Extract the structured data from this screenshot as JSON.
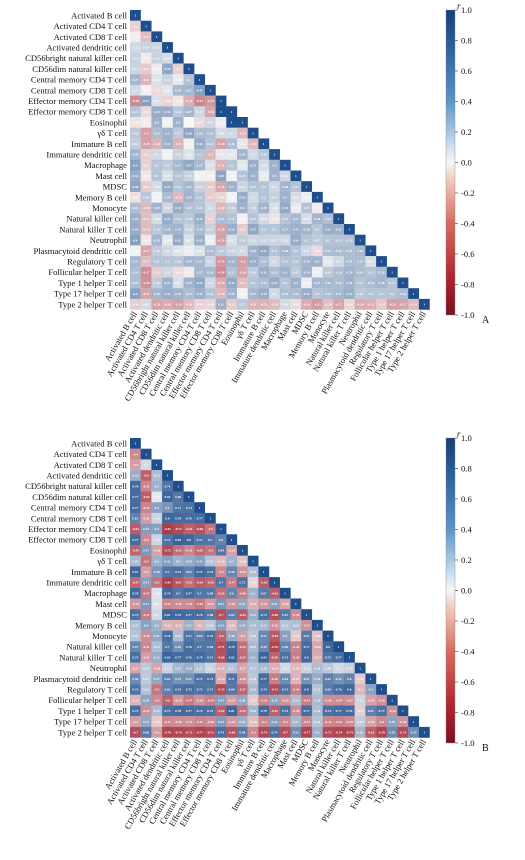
{
  "figure": {
    "colorbar_symbol": "r",
    "colorbar_ticks": [
      "1.0",
      "0.8",
      "0.6",
      "0.4",
      "0.2",
      "0.0",
      "-0.2",
      "-0.4",
      "-0.6",
      "-0.8",
      "-1.0"
    ],
    "colors": {
      "positive": "#1f4e8c",
      "neutral": "#f7f7f7",
      "negative": "#a01c2c"
    }
  },
  "chart_data": [
    {
      "type": "heatmap",
      "panel_label": "A",
      "labels": [
        "Activated B cell",
        "Activated CD4 T cell",
        "Activated CD8 T cell",
        "Activated dendritic cell",
        "CD56bright natural killer cell",
        "CD56dim natural killer cell",
        "Central memory CD4 T cell",
        "Central memory CD8 T cell",
        "Effector memory CD4 T cell",
        "Effector memory CD8 T cell",
        "Eosinophil",
        "γδ T cell",
        "Immature B cell",
        "Immature dendritic cell",
        "Macrophage",
        "Mast cell",
        "MDSC",
        "Memory B cell",
        "Monocyte",
        "Natural killer cell",
        "Natural killer T cell",
        "Neutrophil",
        "Plasmacytoid dendritic cell",
        "Regulatory T cell",
        "Follicular helper T cell",
        "Type 1 helper T cell",
        "Type 17 helper T cell",
        "Type 2 helper T cell"
      ],
      "matrix_shape": "lower-triangular",
      "value_range": [
        -1,
        1
      ],
      "rows": [
        [
          1
        ],
        [
          -0.1,
          1
        ],
        [
          -0.02,
          -0.17,
          1
        ],
        [
          0.1,
          0.13,
          0.12,
          1
        ],
        [
          0.14,
          -0.02,
          0.13,
          0.09,
          1
        ],
        [
          0.12,
          -0.12,
          -0.02,
          0.37,
          -0.1,
          1
        ],
        [
          0.27,
          -0.21,
          0.06,
          0.13,
          0.03,
          0.2,
          1
        ],
        [
          0.1,
          -0.01,
          -0.07,
          0.05,
          0.26,
          0.27,
          0.41,
          1
        ],
        [
          -0.38,
          0.41,
          0.07,
          -0.09,
          -0.03,
          -0.23,
          -0.41,
          -0.33,
          1
        ],
        [
          0.21,
          -0.07,
          0.33,
          0.33,
          0.19,
          0.27,
          0.11,
          -0.26,
          1,
          1
        ],
        [
          -0.04,
          -0.02,
          0.3,
          0.01,
          0.3,
          0,
          -0.07,
          0.11,
          -0.02,
          1,
          1
        ],
        [
          0.18,
          -0.3,
          0.24,
          0.3,
          0.17,
          0.38,
          0.25,
          0.24,
          0.09,
          0.1,
          -0.19,
          1
        ],
        [
          0.15,
          -0.28,
          -0.21,
          0.31,
          -0.21,
          -0.01,
          0.33,
          0.21,
          -0.28,
          0.24,
          0.04,
          -0.19,
          1
        ],
        [
          0.28,
          -0.1,
          0.1,
          0.01,
          0.13,
          0.06,
          0.2,
          -0.2,
          0.04,
          0.04,
          0.29,
          0.1,
          0.19,
          1
        ],
        [
          0.4,
          -0.1,
          0.2,
          0.17,
          0.27,
          0.37,
          0.27,
          0.07,
          -0.21,
          0.2,
          0.04,
          0.33,
          0.09,
          0.3,
          1
        ],
        [
          0.33,
          -0.03,
          0.2,
          0.07,
          0.21,
          0.13,
          0.01,
          -0.01,
          0.38,
          0.01,
          0.21,
          0.3,
          0.03,
          0.3,
          0.11,
          1
        ],
        [
          0.38,
          -0.12,
          0.09,
          0.35,
          0.21,
          0.27,
          0.13,
          -0.12,
          -0.26,
          0.3,
          0.12,
          0.21,
          0.2,
          0.11,
          0.28,
          0.21,
          1
        ],
        [
          -0.05,
          0.18,
          0.01,
          0.26,
          -0.19,
          0.29,
          0.21,
          -0.12,
          -0.09,
          0.01,
          0.33,
          0.1,
          0.2,
          0.14,
          0.3,
          0.08,
          0.02,
          1
        ],
        [
          0.23,
          -0.19,
          0.29,
          0.11,
          0.33,
          0.22,
          0.21,
          0.1,
          -0.19,
          0.16,
          0.3,
          0.15,
          0.29,
          0.08,
          0.35,
          0.03,
          0.21,
          -0.02,
          1
        ],
        [
          0.32,
          -0.17,
          0.09,
          0.34,
          0.21,
          0.18,
          0.31,
          -0.1,
          0.24,
          0.22,
          -0.01,
          0.21,
          0.09,
          -0.04,
          0.21,
          0.27,
          0.08,
          0.28,
          0.23,
          1
        ],
        [
          0.34,
          -0.18,
          0.19,
          0.28,
          0.29,
          0.13,
          0.26,
          0.14,
          -0.28,
          0.32,
          -0.12,
          0.37,
          0.2,
          0.2,
          0.27,
          0.31,
          0.28,
          0.2,
          0.33,
          0.31,
          1
        ],
        [
          0.4,
          -0.03,
          0.28,
          0.04,
          0.35,
          0.07,
          0.32,
          0.02,
          -0.29,
          0.07,
          0.16,
          0.11,
          0.13,
          0.12,
          0.11,
          0.34,
          0.2,
          0.17,
          0.2,
          0.22,
          0.22,
          1
        ],
        [
          0.01,
          -0.27,
          0.16,
          0.1,
          0.05,
          0.02,
          0.06,
          0.24,
          0.17,
          0.12,
          0.1,
          0.29,
          0.37,
          0.21,
          0.28,
          0.2,
          0.11,
          -0.07,
          0.24,
          0.24,
          0.24,
          0.26,
          1
        ],
        [
          0.27,
          -0.17,
          0.21,
          0.2,
          0.19,
          0.28,
          0.27,
          0.12,
          -0.33,
          0.29,
          -0.3,
          0.33,
          0.24,
          0.1,
          0.22,
          0.21,
          0.28,
          0.3,
          0.04,
          0.11,
          0.24,
          0.24,
          0.07,
          1
        ],
        [
          0.24,
          -0.37,
          -0.12,
          0.11,
          -0.06,
          -0.02,
          0.27,
          0.26,
          -0.38,
          0.22,
          -0.28,
          0.16,
          0.32,
          0.23,
          0.3,
          0.17,
          0.29,
          0.02,
          0.18,
          0.24,
          0.29,
          0.24,
          0.21,
          0.26,
          1
        ],
        [
          0.23,
          -0.35,
          0.16,
          0.31,
          0.07,
          0.29,
          0.37,
          0.11,
          -0.24,
          0.35,
          -0.17,
          0.2,
          0.24,
          0.33,
          0.2,
          0.3,
          0.02,
          0.27,
          0.26,
          0.24,
          0.29,
          0.21,
          0.24,
          0.28,
          0.21,
          1
        ],
        [
          0.4,
          -0.27,
          0.28,
          0.33,
          0.29,
          0.24,
          0.32,
          0.21,
          -0.19,
          0.29,
          -0.01,
          0.27,
          0.33,
          0.1,
          0.23,
          0.24,
          0.33,
          0.2,
          0.23,
          0.27,
          0.32,
          0.18,
          0.2,
          0.2,
          0.2,
          0.24,
          1
        ],
        [
          -0.11,
          0.09,
          -0.28,
          -0.24,
          -0.29,
          -0.18,
          -0.09,
          -0.08,
          0.31,
          -0.12,
          0.17,
          -0.21,
          -0.21,
          -0.18,
          0.09,
          -0.06,
          -0.24,
          -0.32,
          -0.16,
          -0.27,
          -0.08,
          -0.24,
          -0.22,
          -0.13,
          -0.29,
          -0.27,
          -0.18,
          1
        ]
      ]
    },
    {
      "type": "heatmap",
      "panel_label": "B",
      "labels": [
        "Activated B cell",
        "Activated CD4 T cell",
        "Activated CD8 T cell",
        "Activated dendritic cell",
        "CD56bright natural killer cell",
        "CD56dim natural killer cell",
        "Central memory CD4 T cell",
        "Central memory CD8 T cell",
        "Effector memory CD4 T cell",
        "Effector memory CD8 T cell",
        "Eosinophil",
        "γδ T cell",
        "Immature B cell",
        "Immature dendritic cell",
        "Macrophage",
        "Mast cell",
        "MDSC",
        "Memory B cell",
        "Monocyte",
        "Natural killer cell",
        "Natural killer T cell",
        "Neutrophil",
        "Plasmacytoid dendritic cell",
        "Regulatory T cell",
        "Follicular helper T cell",
        "Type 1 helper T cell",
        "Type 17 helper T cell",
        "Type 2 helper T cell"
      ],
      "matrix_shape": "lower-triangular",
      "value_range": [
        -1,
        1
      ],
      "rows": [
        [
          1
        ],
        [
          -0.4,
          1
        ],
        [
          -0.3,
          0.1,
          1
        ],
        [
          0.32,
          -0.6,
          0.24,
          1
        ],
        [
          0.78,
          -0.42,
          0.3,
          0.71,
          1
        ],
        [
          0.77,
          -0.62,
          0.04,
          0.82,
          0.69,
          1
        ],
        [
          0.77,
          -0.42,
          0.4,
          0.5,
          0.71,
          0.73,
          1
        ],
        [
          0.61,
          -0.31,
          0.12,
          0.8,
          0.78,
          0.76,
          0.77,
          1
        ],
        [
          -0.64,
          0.44,
          0.4,
          -0.81,
          -0.73,
          -0.61,
          -0.68,
          -0.5,
          1
        ],
        [
          0.77,
          -0.4,
          0.12,
          0.71,
          0.83,
          0.8,
          0.71,
          0.7,
          0.6,
          1
        ],
        [
          -0.59,
          0.47,
          -0.28,
          -0.72,
          -0.53,
          -0.41,
          -0.55,
          -0.5,
          0.69,
          -0.29,
          1
        ],
        [
          0.26,
          -0.5,
          0.3,
          0.42,
          0.3,
          0.35,
          0.41,
          0.21,
          -0.18,
          0.3,
          -0.16,
          1
        ],
        [
          0.81,
          -0.3,
          0.48,
          0.7,
          0.73,
          0.62,
          0.79,
          0.74,
          -0.4,
          0.58,
          -0.35,
          0.23,
          1
        ],
        [
          -0.57,
          0.41,
          -0.5,
          -0.81,
          -0.67,
          -0.53,
          -0.64,
          -0.58,
          0.7,
          -0.47,
          0.72,
          -0.09,
          -0.63,
          1
        ],
        [
          0.78,
          -0.47,
          0.06,
          0.79,
          0.7,
          0.77,
          0.7,
          0.69,
          -0.54,
          0.6,
          -0.46,
          0.3,
          0.67,
          -0.63,
          1
        ],
        [
          -0.34,
          0.47,
          0.07,
          -0.42,
          -0.38,
          -0.39,
          -0.48,
          -0.32,
          0.47,
          -0.35,
          0.37,
          -0.22,
          -0.33,
          0.41,
          -0.28,
          1
        ],
        [
          0.73,
          -0.47,
          0.1,
          0.81,
          0.79,
          0.77,
          0.76,
          0.68,
          -0.7,
          0.63,
          -0.63,
          0.32,
          0.74,
          -0.69,
          0.67,
          -0.39,
          1
        ],
        [
          0.23,
          0.4,
          0.3,
          -0.21,
          -0.22,
          0.31,
          -0.2,
          0.18,
          0.41,
          -0.18,
          0.34,
          0.24,
          0.27,
          -0.36,
          0.21,
          0.23,
          -0.37,
          1
        ],
        [
          0.21,
          -0.38,
          0.37,
          0.76,
          0.23,
          0.71,
          0.62,
          0.73,
          -0.6,
          0.36,
          -0.3,
          0.19,
          0.57,
          -0.64,
          0.4,
          -0.13,
          0.67,
          -0.16,
          1
        ],
        [
          0.57,
          -0.41,
          0.23,
          0.7,
          0.52,
          0.76,
          0.7,
          0.69,
          -0.71,
          0.79,
          -0.52,
          0.25,
          0.59,
          -0.76,
          0.58,
          -0.43,
          0.77,
          -0.26,
          0.8,
          1
        ],
        [
          0.75,
          -0.31,
          0.33,
          0.83,
          0.77,
          0.76,
          0.79,
          0.71,
          -0.69,
          0.82,
          -0.55,
          0.3,
          0.83,
          -0.59,
          0.73,
          -0.45,
          0.8,
          -0.24,
          0.72,
          0.77,
          1
        ],
        [
          -0.27,
          0.18,
          -0.28,
          0.13,
          0.27,
          0.33,
          0.21,
          0.12,
          -0.21,
          0.21,
          -0.27,
          0.21,
          0.26,
          -0.23,
          0.1,
          -0.19,
          0.13,
          0.24,
          0.18,
          0.1,
          0.14,
          1
        ],
        [
          0.56,
          0.17,
          0.37,
          0.62,
          0.51,
          0.51,
          0.71,
          0.74,
          -0.24,
          0.71,
          -0.36,
          0.18,
          0.77,
          -0.46,
          0.54,
          -0.21,
          0.51,
          0.33,
          0.62,
          0.52,
          0.6,
          -0.12,
          1
        ],
        [
          0.72,
          0.22,
          -0.5,
          0.63,
          0.73,
          0.75,
          0.72,
          0.71,
          -0.73,
          0.68,
          -0.57,
          0.26,
          0.74,
          -0.72,
          0.71,
          -0.44,
          0.8,
          0.21,
          0.66,
          0.76,
          0.8,
          -0.2,
          0.4,
          1
        ],
        [
          -0.21,
          0.38,
          -0.4,
          -0.6,
          -0.33,
          -0.47,
          -0.36,
          -0.44,
          0.41,
          -0.31,
          0.36,
          -0.12,
          -0.42,
          0.39,
          -0.35,
          0.24,
          -0.45,
          0.25,
          -0.38,
          -0.39,
          -0.37,
          0.12,
          -0.29,
          -0.36,
          1
        ],
        [
          0.74,
          -0.37,
          0.25,
          0.73,
          0.78,
          0.77,
          0.75,
          0.73,
          -0.62,
          0.81,
          -0.52,
          0.28,
          0.79,
          -0.61,
          0.73,
          -0.38,
          0.77,
          0.24,
          0.74,
          0.77,
          0.76,
          -0.11,
          0.61,
          0.73,
          -0.38,
          1
        ],
        [
          -0.3,
          0.37,
          -0.12,
          -0.41,
          -0.38,
          -0.37,
          -0.42,
          -0.38,
          0.44,
          -0.33,
          0.32,
          -0.16,
          -0.4,
          0.42,
          -0.4,
          0.27,
          -0.41,
          0.21,
          -0.42,
          -0.43,
          -0.39,
          0.16,
          -0.28,
          -0.4,
          0.39,
          -0.36,
          1
        ],
        [
          -0.7,
          0.66,
          -0.3,
          -0.76,
          -0.74,
          -0.72,
          -0.77,
          -0.72,
          0.74,
          -0.68,
          0.66,
          -0.4,
          -0.74,
          0.74,
          -0.7,
          0.53,
          -0.77,
          0.3,
          -0.72,
          -0.74,
          -0.74,
          0.28,
          -0.62,
          -0.76,
          0.55,
          -0.73,
          0.55,
          1
        ]
      ]
    }
  ]
}
